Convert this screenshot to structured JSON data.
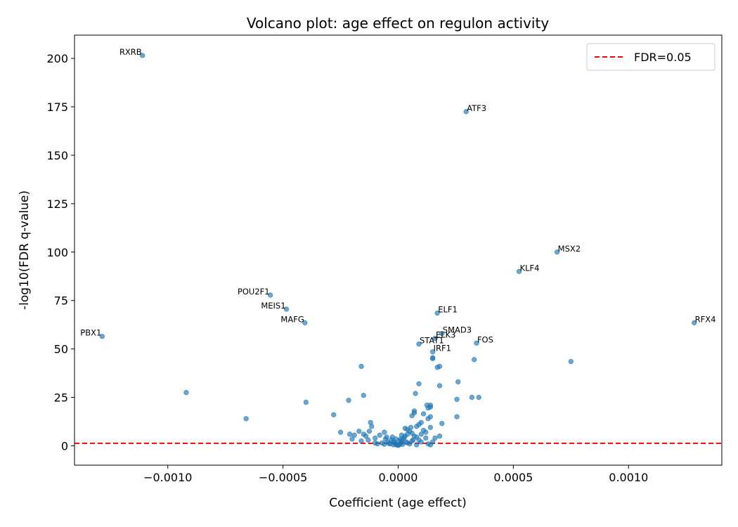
{
  "chart_data": {
    "type": "scatter",
    "title": "Volcano plot: age effect on regulon activity",
    "xlabel": "Coefficient (age effect)",
    "ylabel": "-log10(FDR q-value)",
    "xlim": [
      -0.001405,
      0.001405
    ],
    "ylim": [
      -10,
      212
    ],
    "xticks": [
      -0.001,
      -0.0005,
      0.0,
      0.0005,
      0.001
    ],
    "xtick_labels": [
      "−0.0010",
      "−0.0005",
      "0.0000",
      "0.0005",
      "0.0010"
    ],
    "yticks": [
      0,
      25,
      50,
      75,
      100,
      125,
      150,
      175,
      200
    ],
    "ytick_labels": [
      "0",
      "25",
      "50",
      "75",
      "100",
      "125",
      "150",
      "175",
      "200"
    ],
    "grid": false,
    "point_color": "#1f77b4",
    "threshold": {
      "y": 1.30103,
      "label": "FDR=0.05",
      "color": "#ff0000",
      "style": "dashed"
    },
    "legend": {
      "position": "top-right",
      "entries": [
        "FDR=0.05"
      ]
    },
    "labeled_points": [
      {
        "label": "RXRB",
        "x": -0.00111,
        "y": 201.5,
        "anchor": "end"
      },
      {
        "label": "ATF3",
        "x": 0.000295,
        "y": 172.5,
        "anchor": "start"
      },
      {
        "label": "MSX2",
        "x": 0.00069,
        "y": 100.0,
        "anchor": "start"
      },
      {
        "label": "KLF4",
        "x": 0.000525,
        "y": 90.0,
        "anchor": "start"
      },
      {
        "label": "POU2F1",
        "x": -0.000555,
        "y": 77.8,
        "anchor": "end"
      },
      {
        "label": "MEIS1",
        "x": -0.000485,
        "y": 70.5,
        "anchor": "end"
      },
      {
        "label": "ELF1",
        "x": 0.00017,
        "y": 68.5,
        "anchor": "start"
      },
      {
        "label": "RFX4",
        "x": 0.001285,
        "y": 63.5,
        "anchor": "start"
      },
      {
        "label": "MAFG",
        "x": -0.000405,
        "y": 63.5,
        "anchor": "end"
      },
      {
        "label": "PBX1",
        "x": -0.001285,
        "y": 56.5,
        "anchor": "end"
      },
      {
        "label": "SMAD3",
        "x": 0.00019,
        "y": 58.0,
        "anchor": "start"
      },
      {
        "label": "ELK3",
        "x": 0.00016,
        "y": 55.5,
        "anchor": "start"
      },
      {
        "label": "FOS",
        "x": 0.00034,
        "y": 53.0,
        "anchor": "start"
      },
      {
        "label": "STAT1",
        "x": 9e-05,
        "y": 52.5,
        "anchor": "start"
      },
      {
        "label": "IRF1",
        "x": 0.00015,
        "y": 48.5,
        "anchor": "start"
      }
    ],
    "points": [
      [
        0.00075,
        43.5
      ],
      [
        0.00033,
        44.5
      ],
      [
        0.00035,
        25.0
      ],
      [
        0.00032,
        25.0
      ],
      [
        0.00026,
        33.0
      ],
      [
        0.000255,
        24.0
      ],
      [
        0.000255,
        15.0
      ],
      [
        0.00019,
        11.5
      ],
      [
        0.00018,
        41.0
      ],
      [
        0.00017,
        40.5
      ],
      [
        0.00018,
        31.0
      ],
      [
        0.00018,
        5.0
      ],
      [
        0.00015,
        45.0
      ],
      [
        0.00015,
        45.5
      ],
      [
        0.00014,
        21.0
      ],
      [
        0.00014,
        20.0
      ],
      [
        0.00013,
        19.5
      ],
      [
        0.000125,
        21.0
      ],
      [
        0.00014,
        15.0
      ],
      [
        0.00013,
        14.0
      ],
      [
        0.00015,
        2.0
      ],
      [
        0.00014,
        9.5
      ],
      [
        0.00011,
        16.5
      ],
      [
        0.00011,
        8.0
      ],
      [
        9e-05,
        32.0
      ],
      [
        7.5e-05,
        27.0
      ],
      [
        7e-05,
        18.0
      ],
      [
        7e-05,
        17.0
      ],
      [
        6e-05,
        15.5
      ],
      [
        5.5e-05,
        9.5
      ],
      [
        4e-05,
        8.5
      ],
      [
        9e-05,
        11.0
      ],
      [
        8e-05,
        10.0
      ],
      [
        0.0001,
        12.0
      ],
      [
        0.0001,
        6.0
      ],
      [
        0.00012,
        4.0
      ],
      [
        0.00013,
        1.0
      ],
      [
        0.00014,
        0.5
      ],
      [
        9e-05,
        3.0
      ],
      [
        7e-05,
        5.0
      ],
      [
        6e-05,
        6.5
      ],
      [
        5e-05,
        7.5
      ],
      [
        4e-05,
        6.0
      ],
      [
        3e-05,
        5.0
      ],
      [
        2.5e-05,
        4.0
      ],
      [
        2e-05,
        3.0
      ],
      [
        1.5e-05,
        2.0
      ],
      [
        1e-05,
        1.2
      ],
      [
        5e-06,
        0.5
      ],
      [
        0.0,
        0.2
      ],
      [
        -5e-06,
        0.4
      ],
      [
        -1e-05,
        0.8
      ],
      [
        -1.5e-05,
        1.5
      ],
      [
        -2e-05,
        2.2
      ],
      [
        -3e-05,
        3.0
      ],
      [
        -3.5e-05,
        1.0
      ],
      [
        -4.5e-05,
        2.0
      ],
      [
        -5.5e-05,
        3.5
      ],
      [
        -7e-05,
        1.5
      ],
      [
        -6e-05,
        7.0
      ],
      [
        -8e-05,
        5.5
      ],
      [
        -9e-05,
        1.0
      ],
      [
        -0.0001,
        4.0
      ],
      [
        -0.000115,
        10.0
      ],
      [
        -0.000125,
        7.5
      ],
      [
        -0.00013,
        3.0
      ],
      [
        -0.00015,
        6.0
      ],
      [
        -0.00016,
        2.5
      ],
      [
        -0.00019,
        5.5
      ],
      [
        -0.0002,
        3.5
      ],
      [
        -0.00012,
        12.0
      ],
      [
        -0.00016,
        41.0
      ],
      [
        -0.00015,
        26.0
      ],
      [
        -0.00017,
        7.5
      ],
      [
        -0.000215,
        23.5
      ],
      [
        -0.00021,
        6.0
      ],
      [
        -0.00025,
        7.0
      ],
      [
        -0.00028,
        16.0
      ],
      [
        -0.0004,
        22.5
      ],
      [
        -0.00066,
        14.0
      ],
      [
        -0.00092,
        27.5
      ],
      [
        -2e-05,
        0.5
      ],
      [
        2e-05,
        0.8
      ],
      [
        -4e-05,
        1.2
      ],
      [
        4e-05,
        1.5
      ],
      [
        6e-05,
        2.5
      ],
      [
        -6e-05,
        0.8
      ],
      [
        8e-05,
        4.5
      ],
      [
        -2.5e-05,
        4.5
      ],
      [
        1e-05,
        3.5
      ],
      [
        3e-05,
        9.0
      ],
      [
        5e-05,
        1.0
      ],
      [
        0.0001,
        2.0
      ],
      [
        0.00012,
        7.0
      ],
      [
        0.00016,
        4.0
      ],
      [
        8e-05,
        0.5
      ],
      [
        -0.0001,
        1.5
      ],
      [
        -0.00014,
        5.0
      ],
      [
        5e-06,
        2.5
      ],
      [
        -1e-05,
        3.5
      ],
      [
        3.5e-05,
        2.0
      ],
      [
        1.5e-05,
        5.5
      ],
      [
        -5e-05,
        4.5
      ],
      [
        6.5e-05,
        3.0
      ]
    ]
  }
}
